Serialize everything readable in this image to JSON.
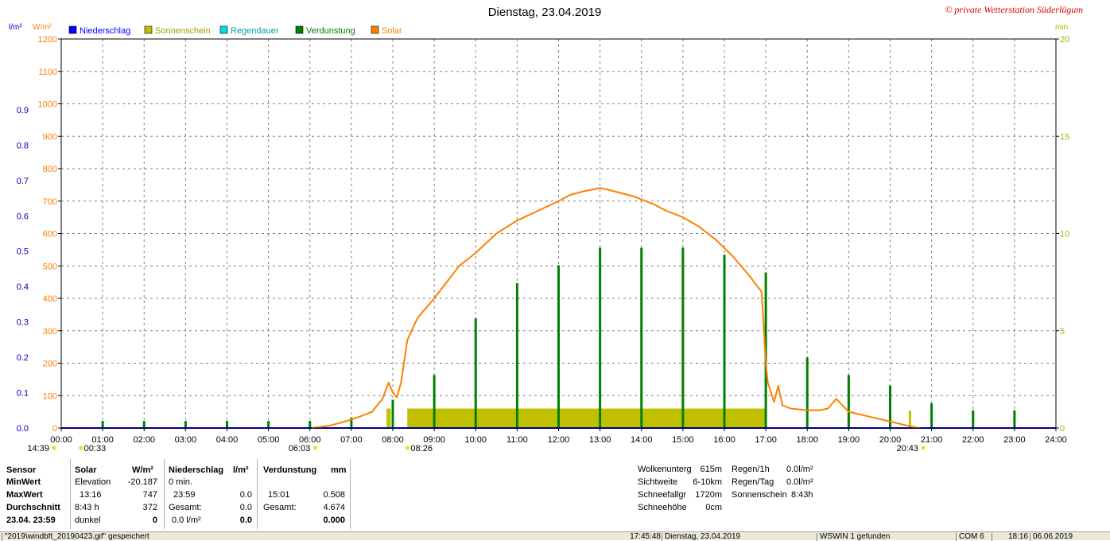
{
  "header": {
    "title": "Dienstag, 23.04.2019",
    "copyright": "© private Wetterstation Süderlügum",
    "left_unit_1": "l/m²",
    "left_unit_2": "W/m²",
    "right_unit": "min"
  },
  "legend": [
    {
      "label": "Niederschlag",
      "color": "#0000ff"
    },
    {
      "label": "Sonnenschein",
      "color": "#c0c000"
    },
    {
      "label": "Regendauer",
      "color": "#00e0e0"
    },
    {
      "label": "Verdunstung",
      "color": "#008000"
    },
    {
      "label": "Solar",
      "color": "#ff8000"
    }
  ],
  "colors": {
    "solar": "#ff8000",
    "sunshine": "#c0c000",
    "evaporation": "#008000",
    "precip": "#0000ff",
    "grid": "#808080",
    "solar_axis": "#ff8000",
    "precip_axis": "#0000c0",
    "min_axis": "#b0b000"
  },
  "chart_data": {
    "type": "line",
    "title": "Dienstag, 23.04.2019",
    "x_ticks": [
      "00:00",
      "01:00",
      "02:00",
      "03:00",
      "04:00",
      "05:00",
      "06:00",
      "07:00",
      "08:00",
      "09:00",
      "10:00",
      "11:00",
      "12:00",
      "13:00",
      "14:00",
      "15:00",
      "16:00",
      "17:00",
      "18:00",
      "19:00",
      "20:00",
      "21:00",
      "22:00",
      "23:00",
      "24:00"
    ],
    "xlim": [
      0,
      24
    ],
    "solar_ticks": [
      0,
      100,
      200,
      300,
      400,
      500,
      600,
      700,
      800,
      900,
      1000,
      1100,
      1200
    ],
    "solar_ylim": [
      0,
      1200
    ],
    "precip_ticks": [
      "0.0",
      "0.1",
      "0.2",
      "0.3",
      "0.4",
      "0.5",
      "0.6",
      "0.7",
      "0.8",
      "0.9"
    ],
    "precip_ylim": [
      0,
      1.1
    ],
    "min_ticks": [
      "0",
      "5",
      "10",
      "15",
      "20"
    ],
    "min_ylim": [
      0,
      20
    ],
    "grid": true,
    "series": [
      {
        "name": "Solar",
        "unit": "W/m²",
        "x": [
          6.05,
          6.5,
          6.9,
          7.2,
          7.5,
          7.75,
          7.9,
          8.0,
          8.1,
          8.2,
          8.35,
          8.45,
          8.6,
          8.8,
          9.0,
          9.3,
          9.6,
          10.0,
          10.5,
          11.0,
          11.5,
          12.0,
          12.3,
          12.6,
          13.0,
          13.2,
          13.5,
          13.8,
          14.0,
          14.3,
          14.6,
          15.0,
          15.4,
          15.8,
          16.2,
          16.6,
          16.9,
          17.0,
          17.05,
          17.1,
          17.2,
          17.3,
          17.4,
          17.6,
          18.0,
          18.3,
          18.5,
          18.7,
          19.0,
          19.5,
          20.0,
          20.5,
          20.7
        ],
        "y": [
          0,
          8,
          22,
          35,
          50,
          90,
          140,
          110,
          95,
          140,
          270,
          300,
          340,
          370,
          400,
          450,
          500,
          540,
          600,
          640,
          670,
          700,
          720,
          730,
          740,
          735,
          725,
          715,
          705,
          690,
          670,
          650,
          620,
          580,
          530,
          470,
          420,
          200,
          140,
          120,
          80,
          130,
          70,
          60,
          55,
          55,
          60,
          90,
          50,
          35,
          20,
          5,
          0
        ]
      },
      {
        "name": "Sonnenschein",
        "unit": "min",
        "x0": [
          7.85,
          8.35
        ],
        "x1": [
          7.95,
          17.0
        ],
        "y": [
          1.0,
          1.0
        ],
        "extra_tick_x": 20.45,
        "extra_tick_y": 0.9
      },
      {
        "name": "Verdunstung",
        "unit": "mm",
        "x": [
          1,
          2,
          3,
          4,
          5,
          6,
          7,
          8,
          9,
          10,
          11,
          12,
          13,
          14,
          15,
          16,
          17,
          18,
          19,
          20,
          21,
          22,
          23
        ],
        "y": [
          0.02,
          0.02,
          0.02,
          0.02,
          0.02,
          0.02,
          0.03,
          0.08,
          0.15,
          0.31,
          0.41,
          0.46,
          0.51,
          0.51,
          0.51,
          0.49,
          0.44,
          0.2,
          0.15,
          0.12,
          0.07,
          0.05,
          0.05
        ]
      }
    ]
  },
  "markers": [
    {
      "label": "14:39",
      "x": -0.25,
      "icon": "sun-icon"
    },
    {
      "label": "00:33",
      "x": 0.55,
      "icon": "moon-icon"
    },
    {
      "label": "06:03",
      "x": 6.05,
      "icon": "sunrise-icon"
    },
    {
      "label": "08:26",
      "x": 8.43,
      "icon": "moonset-icon"
    },
    {
      "label": "20:43",
      "x": 20.72,
      "icon": "sunset-icon"
    }
  ],
  "stats": {
    "col_sensor": [
      "Sensor",
      "MinWert",
      "MaxWert",
      "Durchschnitt",
      "23.04. 23:59"
    ],
    "solar_header": "Solar",
    "solar_unit": "W/m²",
    "solar_rows": [
      [
        "Elevation",
        "-20.187"
      ],
      [
        "13:16",
        "747"
      ],
      [
        "8:43 h",
        "372"
      ],
      [
        "dunkel",
        "0"
      ]
    ],
    "nied_header": "Niederschlag",
    "nied_unit": "l/m²",
    "nied_rows": [
      [
        "0 min.",
        ""
      ],
      [
        "23:59",
        "0.0"
      ],
      [
        "Gesamt:",
        "0.0"
      ],
      [
        "0.0 l/m²",
        "0.0"
      ]
    ],
    "verd_header": "Verdunstung",
    "verd_unit": "mm",
    "verd_rows": [
      [
        "",
        ""
      ],
      [
        "15:01",
        "0.508"
      ],
      [
        "Gesamt:",
        "4.674"
      ],
      [
        "",
        "0.000"
      ]
    ],
    "weather_rows": [
      [
        "Wolkenunterg",
        "615m"
      ],
      [
        "Sichtweite",
        "6-10km"
      ],
      [
        "Schneefallgr",
        "1720m"
      ],
      [
        "Schneehöhe",
        "0cm"
      ]
    ],
    "rain_rows": [
      [
        "Regen/1h",
        "0.0l/m²"
      ],
      [
        "Regen/Tag",
        "0.0l/m²"
      ],
      [
        "Sonnenschein",
        "8:43h"
      ]
    ]
  },
  "statusbar": {
    "file": "\"2019\\windbft_20190423.gif\" gespeichert",
    "time": "17:45:48",
    "date": "Dienstag, 23.04.2019",
    "device": "WSWIN 1 gefunden",
    "port": "COM 6",
    "clock": "18:16",
    "today": "06.06.2019"
  }
}
